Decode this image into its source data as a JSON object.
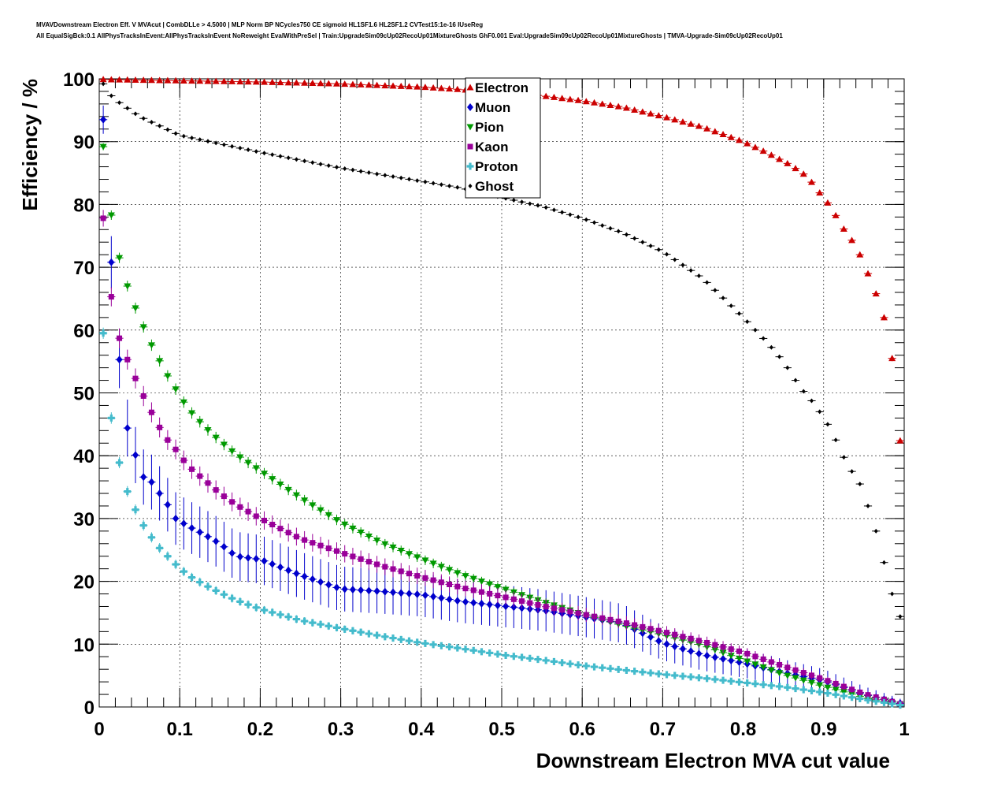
{
  "title_lines": [
    "MVAVDownstream Electron Eff. V MVAcut | CombDLLe > 4.5000 | MLP Norm BP NCycles750 CE sigmoid HL1SF1.6 HL2SF1.2 CVTest15:1e-16 IUseReg",
    "All EqualSigBck:0.1 AllPhysTracksInEvent:AllPhysTracksInEvent NoReweight EvalWithPreSel | Train:UpgradeSim09cUp02RecoUp01MixtureGhosts GhF0.001 Eval:UpgradeSim09cUp02RecoUp01MixtureGhosts | TMVA-Upgrade-Sim09cUp02RecoUp01"
  ],
  "chart_data": {
    "type": "scatter",
    "xlabel": "Downstream Electron MVA cut value",
    "ylabel": "Efficiency / %",
    "xlim": [
      0,
      1
    ],
    "ylim": [
      0,
      100
    ],
    "x_ticks": [
      "0",
      "0.1",
      "0.2",
      "0.3",
      "0.4",
      "0.5",
      "0.6",
      "0.7",
      "0.8",
      "0.9",
      "1"
    ],
    "y_ticks": [
      "0",
      "10",
      "20",
      "30",
      "40",
      "50",
      "60",
      "70",
      "80",
      "90",
      "100"
    ],
    "grid": true,
    "legend_position": "top-center",
    "x_step": 0.01,
    "series": [
      {
        "name": "Electron",
        "color": "#cc0000",
        "marker": "triangle-up",
        "error_scale": 0.1,
        "x": [
          0.005,
          0.1,
          0.2,
          0.3,
          0.4,
          0.45,
          0.5,
          0.55,
          0.6,
          0.65,
          0.7,
          0.75,
          0.8,
          0.83,
          0.86,
          0.88,
          0.9,
          0.91,
          0.92,
          0.935,
          0.945,
          0.955,
          0.965,
          0.975,
          0.985,
          0.995
        ],
        "y": [
          99.9,
          99.7,
          99.5,
          99.2,
          98.7,
          98.3,
          97.8,
          97.3,
          96.5,
          95.5,
          94.0,
          92.3,
          90.0,
          88.2,
          86.2,
          84.4,
          81.0,
          79.5,
          77.0,
          74.3,
          72.0,
          69.0,
          65.8,
          62.0,
          55.5,
          42.4
        ]
      },
      {
        "name": "Muon",
        "color": "#0000cc",
        "marker": "diamond",
        "error_scale": 1.0,
        "x": [
          0.005,
          0.015,
          0.025,
          0.035,
          0.045,
          0.055,
          0.065,
          0.075,
          0.085,
          0.095,
          0.11,
          0.13,
          0.15,
          0.17,
          0.2,
          0.25,
          0.3,
          0.35,
          0.4,
          0.45,
          0.5,
          0.55,
          0.6,
          0.65,
          0.7,
          0.75,
          0.8,
          0.85,
          0.9,
          0.95,
          0.995
        ],
        "y": [
          93.5,
          70.8,
          55.3,
          44.4,
          40.1,
          36.6,
          35.8,
          34.0,
          32.2,
          30.0,
          28.8,
          27.5,
          26.0,
          24.0,
          23.5,
          21.0,
          18.8,
          18.4,
          17.9,
          16.8,
          16.1,
          15.4,
          14.4,
          13.3,
          10.2,
          8.3,
          7.0,
          5.5,
          4.2,
          2.0,
          0.6
        ]
      },
      {
        "name": "Pion",
        "color": "#009900",
        "marker": "triangle-down",
        "error_scale": 0.2,
        "x": [
          0.005,
          0.015,
          0.025,
          0.035,
          0.045,
          0.055,
          0.065,
          0.075,
          0.085,
          0.095,
          0.11,
          0.13,
          0.15,
          0.17,
          0.2,
          0.25,
          0.3,
          0.35,
          0.4,
          0.45,
          0.5,
          0.55,
          0.6,
          0.65,
          0.7,
          0.75,
          0.8,
          0.85,
          0.9,
          0.95,
          0.995
        ],
        "y": [
          89.2,
          78.3,
          71.5,
          67.0,
          63.5,
          60.5,
          57.6,
          55.1,
          52.7,
          50.6,
          47.5,
          44.7,
          42.3,
          40.2,
          37.6,
          33.3,
          29.4,
          26.2,
          23.6,
          21.1,
          18.9,
          16.8,
          14.8,
          13.0,
          11.5,
          9.8,
          7.5,
          5.2,
          3.3,
          1.5,
          0.4
        ]
      },
      {
        "name": "Kaon",
        "color": "#990099",
        "marker": "square",
        "error_scale": 0.35,
        "x": [
          0.005,
          0.015,
          0.025,
          0.035,
          0.045,
          0.055,
          0.065,
          0.075,
          0.085,
          0.095,
          0.11,
          0.13,
          0.15,
          0.17,
          0.2,
          0.25,
          0.3,
          0.35,
          0.4,
          0.45,
          0.5,
          0.55,
          0.6,
          0.65,
          0.7,
          0.75,
          0.8,
          0.85,
          0.9,
          0.95,
          0.995
        ],
        "y": [
          77.8,
          65.3,
          58.7,
          55.3,
          52.3,
          49.5,
          46.9,
          44.5,
          42.5,
          41.0,
          38.4,
          36.2,
          34.0,
          32.2,
          30.0,
          26.8,
          24.6,
          22.5,
          20.7,
          19.0,
          17.6,
          16.1,
          14.8,
          13.5,
          12.0,
          10.4,
          8.7,
          6.5,
          4.4,
          2.1,
          0.5
        ]
      },
      {
        "name": "Proton",
        "color": "#44bbcc",
        "marker": "cross",
        "error_scale": 0.2,
        "x": [
          0.005,
          0.015,
          0.025,
          0.035,
          0.045,
          0.055,
          0.065,
          0.075,
          0.085,
          0.095,
          0.11,
          0.13,
          0.15,
          0.17,
          0.2,
          0.25,
          0.3,
          0.35,
          0.4,
          0.45,
          0.5,
          0.55,
          0.6,
          0.65,
          0.7,
          0.75,
          0.8,
          0.85,
          0.9,
          0.95,
          0.995
        ],
        "y": [
          59.5,
          46.0,
          38.9,
          34.3,
          31.4,
          28.9,
          27.0,
          25.3,
          24.0,
          22.7,
          21.0,
          19.5,
          18.2,
          17.0,
          15.6,
          13.8,
          12.5,
          11.3,
          10.2,
          9.3,
          8.3,
          7.5,
          6.6,
          5.9,
          5.2,
          4.6,
          3.9,
          3.2,
          2.3,
          1.2,
          0.3
        ]
      },
      {
        "name": "Ghost",
        "color": "#000000",
        "marker": "diamond-small",
        "error_scale": 0.03,
        "x": [
          0.005,
          0.015,
          0.025,
          0.05,
          0.1,
          0.2,
          0.3,
          0.4,
          0.45,
          0.5,
          0.55,
          0.6,
          0.65,
          0.7,
          0.75,
          0.8,
          0.83,
          0.85,
          0.87,
          0.89,
          0.9,
          0.91,
          0.92,
          0.93,
          0.945,
          0.955,
          0.965,
          0.975,
          0.985,
          0.995
        ],
        "y": [
          99.2,
          97.3,
          96.2,
          94.0,
          91.0,
          88.3,
          85.8,
          83.7,
          82.6,
          81.1,
          79.7,
          77.8,
          75.5,
          72.5,
          68.2,
          62.0,
          58.0,
          55.0,
          51.0,
          48.0,
          46.0,
          44.0,
          41.0,
          38.5,
          35.5,
          32.0,
          28.0,
          23.0,
          18.0,
          14.4
        ]
      }
    ]
  }
}
